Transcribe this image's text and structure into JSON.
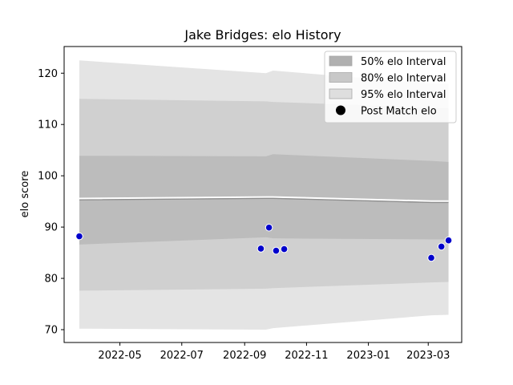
{
  "chart_data": {
    "type": "area",
    "title": "Jake Bridges: elo History",
    "xlabel": "",
    "ylabel": "elo score",
    "xlim": [
      "2022-03-07",
      "2023-04-03"
    ],
    "ylim": [
      67.5,
      125.2
    ],
    "x_ticks": [
      {
        "value": "2022-05-01",
        "label": "2022-05"
      },
      {
        "value": "2022-07-01",
        "label": "2022-07"
      },
      {
        "value": "2022-09-01",
        "label": "2022-09"
      },
      {
        "value": "2022-11-01",
        "label": "2022-11"
      },
      {
        "value": "2023-01-01",
        "label": "2023-01"
      },
      {
        "value": "2023-03-01",
        "label": "2023-03"
      }
    ],
    "y_ticks": [
      70,
      80,
      90,
      100,
      110,
      120
    ],
    "grid": false,
    "legend_position": "top-right",
    "x": [
      "2022-03-22",
      "2022-09-22",
      "2022-09-29",
      "2023-03-04",
      "2023-03-21"
    ],
    "mean": [
      95.3,
      95.6,
      95.6,
      94.8,
      94.8
    ],
    "series": [
      {
        "name": "95% elo Interval",
        "color": "#e4e4e4",
        "upper": [
          122.5,
          120.0,
          120.5,
          118.0,
          118.0
        ],
        "lower": [
          70.2,
          70.0,
          70.3,
          72.8,
          72.9
        ]
      },
      {
        "name": "80% elo Interval",
        "color": "#d0d0d0",
        "upper": [
          115.0,
          114.5,
          114.4,
          113.3,
          113.2
        ],
        "lower": [
          77.6,
          78.0,
          78.1,
          79.2,
          79.3
        ]
      },
      {
        "name": "50% elo Interval",
        "color": "#bcbcbc",
        "upper": [
          103.9,
          103.8,
          104.2,
          102.9,
          102.7
        ],
        "lower": [
          86.6,
          88.0,
          87.8,
          87.6,
          87.6
        ]
      }
    ],
    "points": {
      "name": "Post Match elo",
      "color": "#0000cc",
      "x": [
        "2022-03-22",
        "2022-09-17",
        "2022-09-25",
        "2022-10-02",
        "2022-10-10",
        "2023-03-04",
        "2023-03-14",
        "2023-03-21"
      ],
      "y": [
        88.2,
        85.8,
        89.9,
        85.4,
        85.7,
        84.0,
        86.2,
        87.4
      ]
    },
    "legend": [
      {
        "label": "50% elo Interval",
        "color": "#b0b0b0",
        "kind": "patch"
      },
      {
        "label": "80% elo Interval",
        "color": "#c8c8c8",
        "kind": "patch"
      },
      {
        "label": "95% elo Interval",
        "color": "#dedede",
        "kind": "patch"
      },
      {
        "label": "Post Match elo",
        "color": "#000000",
        "kind": "marker"
      }
    ]
  }
}
